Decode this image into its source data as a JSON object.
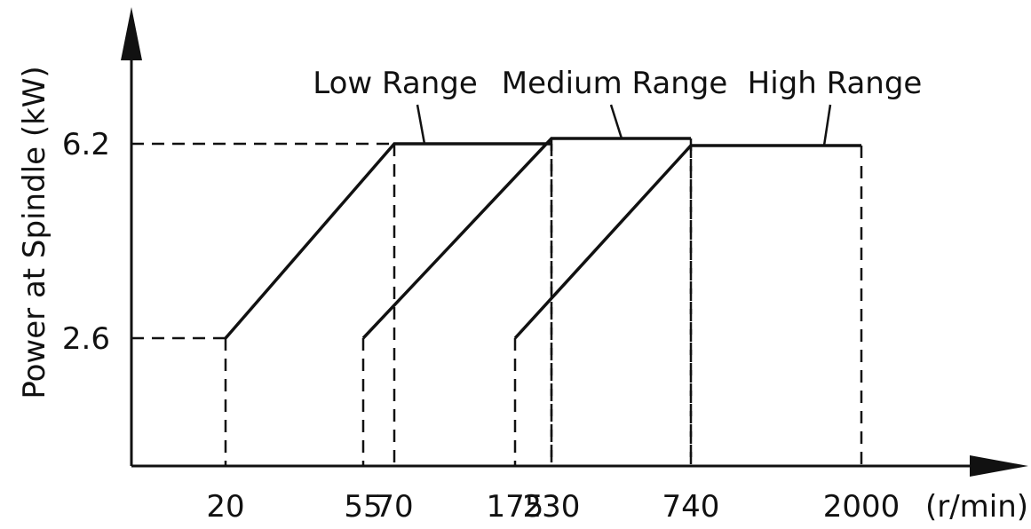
{
  "chart_data": {
    "type": "line",
    "title": "",
    "ylabel": "Power at Spindle (kW)",
    "xlabel": "",
    "x_unit": "(r/min)",
    "x_ticks": [
      "20",
      "55",
      "70",
      "175",
      "230",
      "740",
      "2000"
    ],
    "y_ticks": [
      "2.6",
      "6.2"
    ],
    "series": [
      {
        "name": "Low Range",
        "points": [
          [
            20,
            2.6
          ],
          [
            70,
            6.2
          ],
          [
            230,
            6.2
          ]
        ]
      },
      {
        "name": "Medium Range",
        "points": [
          [
            55,
            2.6
          ],
          [
            230,
            6.2
          ],
          [
            740,
            6.2
          ]
        ]
      },
      {
        "name": "High Range",
        "points": [
          [
            175,
            2.6
          ],
          [
            740,
            6.2
          ],
          [
            2000,
            6.2
          ]
        ]
      }
    ],
    "legend_placement": "inline labels above the lines",
    "grid": false,
    "reference_lines": "dashed lines from axes to each breakpoint"
  }
}
